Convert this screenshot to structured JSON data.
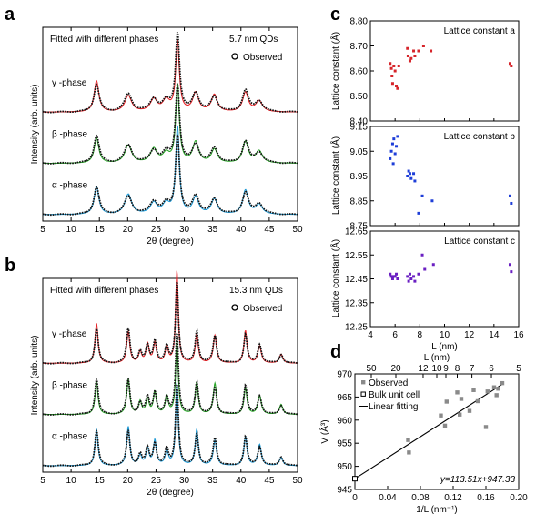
{
  "panel_letters": [
    "a",
    "b",
    "c",
    "d"
  ],
  "chart_data": [
    {
      "panel": "a",
      "type": "line",
      "title": "Fitted with different phases",
      "annotation": "5.7 nm QDs",
      "legend": "Observed",
      "xlabel": "2θ (degree)",
      "ylabel": "Intensity (arb. units)",
      "xlim": [
        5,
        50
      ],
      "xticks": [
        5,
        10,
        15,
        20,
        25,
        30,
        35,
        40,
        45,
        50
      ],
      "series": [
        {
          "name": "γ -phase",
          "color": "#e8262b",
          "offset": 2.3
        },
        {
          "name": "β -phase",
          "color": "#2aa52a",
          "offset": 1.15
        },
        {
          "name": "α -phase",
          "color": "#1f9ad6",
          "offset": 0.0
        }
      ],
      "peaks_observed": [
        {
          "x": 14.5,
          "h": 0.62,
          "w": 0.55
        },
        {
          "x": 20.1,
          "h": 0.4,
          "w": 0.8
        },
        {
          "x": 24.6,
          "h": 0.28,
          "w": 0.8
        },
        {
          "x": 26.8,
          "h": 0.22,
          "w": 0.8
        },
        {
          "x": 28.8,
          "h": 1.75,
          "w": 0.42
        },
        {
          "x": 32.0,
          "h": 0.42,
          "w": 0.7
        },
        {
          "x": 35.3,
          "h": 0.34,
          "w": 0.7
        },
        {
          "x": 40.8,
          "h": 0.48,
          "w": 0.65
        },
        {
          "x": 43.2,
          "h": 0.24,
          "w": 0.8
        }
      ]
    },
    {
      "panel": "b",
      "type": "line",
      "title": "Fitted with different phases",
      "annotation": "15.3 nm QDs",
      "legend": "Observed",
      "xlabel": "2θ (degree)",
      "ylabel": "Intensity (arb. units)",
      "xlim": [
        5,
        50
      ],
      "xticks": [
        5,
        10,
        15,
        20,
        25,
        30,
        35,
        40,
        45,
        50
      ],
      "series": [
        {
          "name": "γ -phase",
          "color": "#e8262b",
          "offset": 2.3
        },
        {
          "name": "β -phase",
          "color": "#2aa52a",
          "offset": 1.15
        },
        {
          "name": "α -phase",
          "color": "#1f9ad6",
          "offset": 0.0
        }
      ],
      "peaks_observed": [
        {
          "x": 14.5,
          "h": 0.8,
          "w": 0.35
        },
        {
          "x": 20.1,
          "h": 0.78,
          "w": 0.35
        },
        {
          "x": 22.2,
          "h": 0.25,
          "w": 0.35
        },
        {
          "x": 23.5,
          "h": 0.38,
          "w": 0.35
        },
        {
          "x": 24.8,
          "h": 0.5,
          "w": 0.35
        },
        {
          "x": 26.9,
          "h": 0.36,
          "w": 0.35
        },
        {
          "x": 28.7,
          "h": 1.85,
          "w": 0.3
        },
        {
          "x": 32.2,
          "h": 0.72,
          "w": 0.35
        },
        {
          "x": 35.4,
          "h": 0.62,
          "w": 0.38
        },
        {
          "x": 40.8,
          "h": 0.65,
          "w": 0.35
        },
        {
          "x": 43.3,
          "h": 0.42,
          "w": 0.4
        },
        {
          "x": 47.1,
          "h": 0.2,
          "w": 0.4
        }
      ]
    },
    {
      "panel": "c",
      "type": "scatter",
      "xlabel": "L (nm)",
      "ylabel": "Lattice constant (Å)",
      "xlim": [
        4,
        16
      ],
      "xticks": [
        4,
        6,
        8,
        10,
        12,
        14,
        16
      ],
      "subplots": [
        {
          "name": "Lattice constant a",
          "color": "#d6242a",
          "ylim": [
            8.4,
            8.8
          ],
          "yticks": [
            "8.40",
            "8.50",
            "8.60",
            "8.70",
            "8.80"
          ],
          "points": [
            [
              5.6,
              8.63
            ],
            [
              5.7,
              8.61
            ],
            [
              5.75,
              8.58
            ],
            [
              5.8,
              8.55
            ],
            [
              5.9,
              8.62
            ],
            [
              6.0,
              8.6
            ],
            [
              6.1,
              8.54
            ],
            [
              6.2,
              8.53
            ],
            [
              6.3,
              8.62
            ],
            [
              7.0,
              8.69
            ],
            [
              7.05,
              8.66
            ],
            [
              7.2,
              8.64
            ],
            [
              7.3,
              8.65
            ],
            [
              7.5,
              8.68
            ],
            [
              7.6,
              8.66
            ],
            [
              7.9,
              8.68
            ],
            [
              8.3,
              8.7
            ],
            [
              8.9,
              8.68
            ],
            [
              15.3,
              8.63
            ],
            [
              15.4,
              8.62
            ]
          ]
        },
        {
          "name": "Lattice constant b",
          "color": "#1e3ed8",
          "ylim": [
            8.75,
            9.15
          ],
          "yticks": [
            "8.75",
            "8.85",
            "8.95",
            "9.05",
            "9.15"
          ],
          "points": [
            [
              5.6,
              9.02
            ],
            [
              5.7,
              9.05
            ],
            [
              5.8,
              9.08
            ],
            [
              5.85,
              9.0
            ],
            [
              5.9,
              9.1
            ],
            [
              6.0,
              9.04
            ],
            [
              6.1,
              9.07
            ],
            [
              6.2,
              9.11
            ],
            [
              7.0,
              8.95
            ],
            [
              7.1,
              8.97
            ],
            [
              7.2,
              8.96
            ],
            [
              7.3,
              8.94
            ],
            [
              7.5,
              8.96
            ],
            [
              7.6,
              8.93
            ],
            [
              7.9,
              8.8
            ],
            [
              8.2,
              8.87
            ],
            [
              9.0,
              8.85
            ],
            [
              15.3,
              8.87
            ],
            [
              15.4,
              8.84
            ]
          ]
        },
        {
          "name": "Lattice constant c",
          "color": "#6a1fc2",
          "ylim": [
            12.25,
            12.65
          ],
          "yticks": [
            "12.25",
            "12.35",
            "12.45",
            "12.55",
            "12.65"
          ],
          "points": [
            [
              5.6,
              12.47
            ],
            [
              5.7,
              12.46
            ],
            [
              5.8,
              12.45
            ],
            [
              5.9,
              12.46
            ],
            [
              6.0,
              12.46
            ],
            [
              6.1,
              12.47
            ],
            [
              6.2,
              12.45
            ],
            [
              7.0,
              12.46
            ],
            [
              7.1,
              12.44
            ],
            [
              7.2,
              12.47
            ],
            [
              7.3,
              12.45
            ],
            [
              7.5,
              12.46
            ],
            [
              7.6,
              12.44
            ],
            [
              7.9,
              12.47
            ],
            [
              8.2,
              12.55
            ],
            [
              8.4,
              12.49
            ],
            [
              9.1,
              12.51
            ],
            [
              15.3,
              12.51
            ],
            [
              15.4,
              12.48
            ]
          ]
        }
      ]
    },
    {
      "panel": "d",
      "type": "scatter",
      "xlabel": "1/L (nm⁻¹)",
      "x2label": "L (nm)",
      "ylabel": "V (Å³)",
      "xlim": [
        0,
        0.2
      ],
      "ylim": [
        945,
        970
      ],
      "xticks": [
        "0",
        "0.04",
        "0.08",
        "0.12",
        "0.16",
        "0.20"
      ],
      "yticks": [
        "945",
        "950",
        "955",
        "960",
        "965",
        "970"
      ],
      "top_ticks": [
        {
          "label": "50",
          "x": 0.02
        },
        {
          "label": "20",
          "x": 0.05
        },
        {
          "label": "12",
          "x": 0.0833
        },
        {
          "label": "10",
          "x": 0.1
        },
        {
          "label": "9",
          "x": 0.1111
        },
        {
          "label": "8",
          "x": 0.125
        },
        {
          "label": "7",
          "x": 0.1429
        },
        {
          "label": "6",
          "x": 0.1667
        },
        {
          "label": "5",
          "x": 0.2
        }
      ],
      "legend": [
        "Observed",
        "Bulk unit cell",
        "Linear fitting"
      ],
      "equation": "y=113.51x+947.33",
      "fit": {
        "slope": 113.51,
        "intercept": 947.33
      },
      "bulk_point": [
        0,
        947.33
      ],
      "observed": [
        [
          0.065,
          955.7
        ],
        [
          0.066,
          953.0
        ],
        [
          0.105,
          961.0
        ],
        [
          0.11,
          958.8
        ],
        [
          0.112,
          964.0
        ],
        [
          0.125,
          966.0
        ],
        [
          0.128,
          961.2
        ],
        [
          0.13,
          964.6
        ],
        [
          0.14,
          962.0
        ],
        [
          0.145,
          966.5
        ],
        [
          0.15,
          964.1
        ],
        [
          0.16,
          958.5
        ],
        [
          0.162,
          966.2
        ],
        [
          0.17,
          967.1
        ],
        [
          0.173,
          965.4
        ],
        [
          0.175,
          966.8
        ],
        [
          0.18,
          968.0
        ]
      ]
    }
  ]
}
